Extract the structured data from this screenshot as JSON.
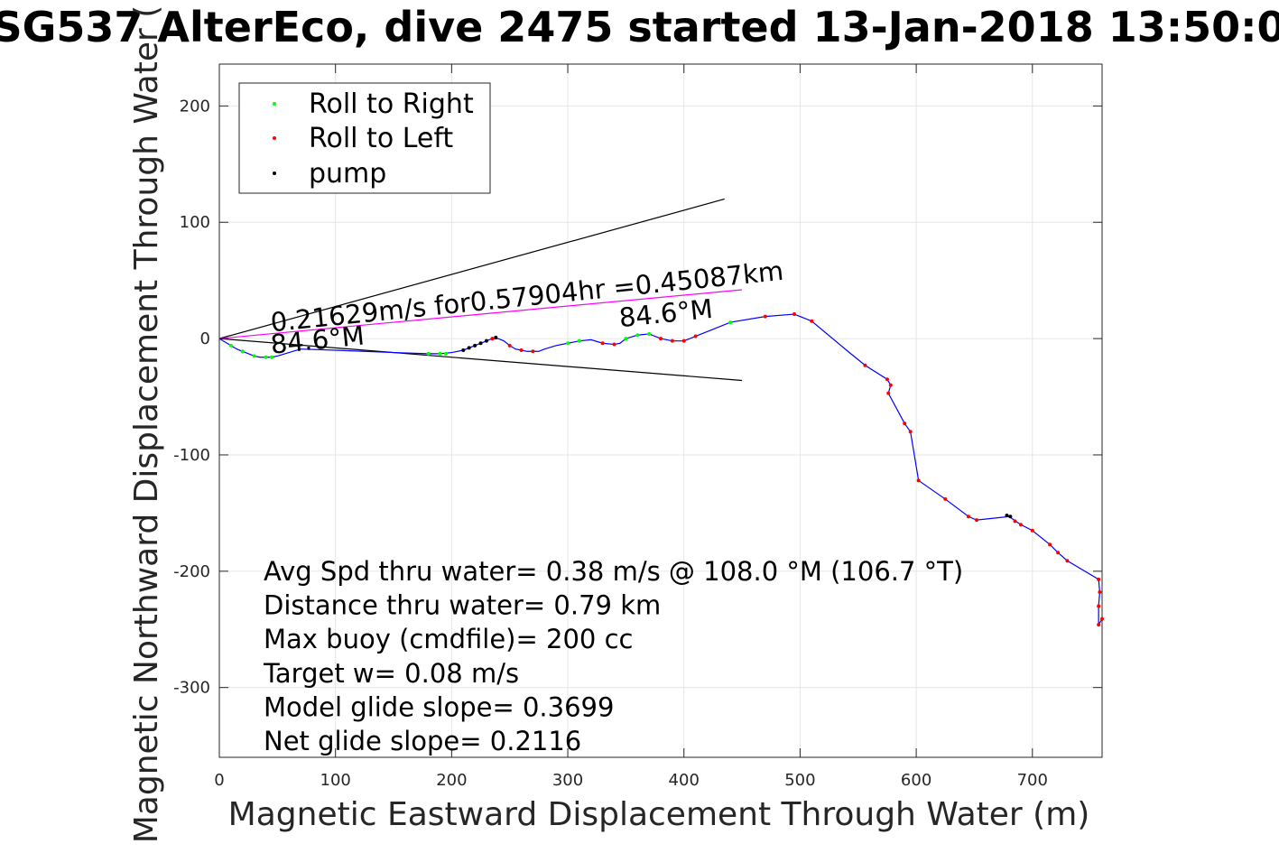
{
  "chart_data": {
    "type": "line",
    "title": "SG537 AlterEco, dive 2475 started 13-Jan-2018 13:50:0",
    "xlabel": "Magnetic Eastward Displacement Through Water (m)",
    "ylabel": "Magnetic Northward Displacement Through Water (",
    "xlim": [
      0,
      760
    ],
    "ylim": [
      -360,
      236
    ],
    "xticks": [
      0,
      100,
      200,
      300,
      400,
      500,
      600,
      700
    ],
    "yticks": [
      -300,
      -200,
      -100,
      0,
      100,
      200
    ],
    "xtick_labels": [
      "0",
      "100",
      "200",
      "300",
      "400",
      "500",
      "600",
      "700"
    ],
    "ytick_labels": [
      "-300",
      "-200",
      "-100",
      "0",
      "100",
      "200"
    ],
    "grid": true,
    "legend_position": "top-left",
    "legend": [
      {
        "label": "Roll to Right",
        "color": "#00ff00"
      },
      {
        "label": "Roll to Left",
        "color": "#ff0000"
      },
      {
        "label": "pump",
        "color": "#000000"
      }
    ],
    "track_color": "#0000ff",
    "track": [
      [
        0,
        0
      ],
      [
        5,
        -3
      ],
      [
        10,
        -6
      ],
      [
        15,
        -9
      ],
      [
        20,
        -11
      ],
      [
        25,
        -13
      ],
      [
        30,
        -15
      ],
      [
        35,
        -16
      ],
      [
        40,
        -16
      ],
      [
        45,
        -16
      ],
      [
        50,
        -15
      ],
      [
        60,
        -12
      ],
      [
        70,
        -9
      ],
      [
        100,
        -10
      ],
      [
        150,
        -12
      ],
      [
        180,
        -13
      ],
      [
        190,
        -13
      ],
      [
        200,
        -12
      ],
      [
        210,
        -10
      ],
      [
        215,
        -8
      ],
      [
        220,
        -6
      ],
      [
        225,
        -4
      ],
      [
        230,
        -2
      ],
      [
        235,
        0
      ],
      [
        240,
        0
      ],
      [
        245,
        -2
      ],
      [
        250,
        -6
      ],
      [
        255,
        -9
      ],
      [
        260,
        -10
      ],
      [
        265,
        -11
      ],
      [
        270,
        -11
      ],
      [
        275,
        -11
      ],
      [
        280,
        -9
      ],
      [
        290,
        -6
      ],
      [
        300,
        -4
      ],
      [
        310,
        -2
      ],
      [
        320,
        -1
      ],
      [
        330,
        -4
      ],
      [
        340,
        -5
      ],
      [
        345,
        -4
      ],
      [
        350,
        0
      ],
      [
        360,
        3
      ],
      [
        370,
        4
      ],
      [
        380,
        0
      ],
      [
        390,
        -2
      ],
      [
        400,
        -2
      ],
      [
        410,
        2
      ],
      [
        440,
        14
      ],
      [
        470,
        19
      ],
      [
        495,
        21
      ],
      [
        510,
        15
      ],
      [
        540,
        -10
      ],
      [
        556,
        -23
      ],
      [
        575,
        -35
      ],
      [
        578,
        -40
      ],
      [
        576,
        -47
      ],
      [
        590,
        -73
      ],
      [
        595,
        -80
      ],
      [
        602,
        -122
      ],
      [
        625,
        -138
      ],
      [
        645,
        -153
      ],
      [
        652,
        -156
      ],
      [
        680,
        -153
      ],
      [
        690,
        -160
      ],
      [
        700,
        -165
      ],
      [
        715,
        -177
      ],
      [
        722,
        -184
      ],
      [
        730,
        -191
      ],
      [
        757,
        -207
      ],
      [
        758,
        -218
      ],
      [
        757,
        -230
      ],
      [
        757,
        -246
      ],
      [
        760,
        -241
      ]
    ],
    "roll_right": [
      [
        10,
        -6
      ],
      [
        20,
        -11
      ],
      [
        30,
        -15
      ],
      [
        40,
        -16
      ],
      [
        45,
        -16
      ],
      [
        180,
        -13
      ],
      [
        190,
        -13
      ],
      [
        195,
        -13
      ],
      [
        300,
        -4
      ],
      [
        310,
        -2
      ],
      [
        350,
        0
      ],
      [
        360,
        3
      ],
      [
        370,
        4
      ],
      [
        440,
        14
      ]
    ],
    "roll_left": [
      [
        235,
        0
      ],
      [
        250,
        -6
      ],
      [
        260,
        -10
      ],
      [
        270,
        -11
      ],
      [
        330,
        -4
      ],
      [
        340,
        -5
      ],
      [
        380,
        0
      ],
      [
        390,
        -2
      ],
      [
        400,
        -2
      ],
      [
        410,
        2
      ],
      [
        470,
        19
      ],
      [
        495,
        21
      ],
      [
        510,
        15
      ],
      [
        556,
        -23
      ],
      [
        575,
        -35
      ],
      [
        578,
        -40
      ],
      [
        576,
        -47
      ],
      [
        590,
        -73
      ],
      [
        595,
        -80
      ],
      [
        602,
        -122
      ],
      [
        625,
        -138
      ],
      [
        645,
        -153
      ],
      [
        652,
        -156
      ],
      [
        685,
        -157
      ],
      [
        690,
        -160
      ],
      [
        700,
        -165
      ],
      [
        715,
        -177
      ],
      [
        722,
        -184
      ],
      [
        730,
        -191
      ],
      [
        757,
        -207
      ],
      [
        758,
        -218
      ],
      [
        757,
        -230
      ],
      [
        757,
        -246
      ],
      [
        760,
        -241
      ]
    ],
    "pump": [
      [
        210,
        -10
      ],
      [
        215,
        -8
      ],
      [
        220,
        -6
      ],
      [
        225,
        -4
      ],
      [
        230,
        -2
      ],
      [
        238,
        1
      ],
      [
        678,
        -152
      ],
      [
        681,
        -153
      ]
    ],
    "bearing_lines": [
      {
        "from": [
          0,
          0
        ],
        "to": [
          435,
          120
        ],
        "color": "#000000"
      },
      {
        "from": [
          0,
          0
        ],
        "to": [
          450,
          -36
        ],
        "color": "#000000"
      },
      {
        "from": [
          0,
          0
        ],
        "to": [
          450,
          42
        ],
        "color": "#ff00ff"
      }
    ],
    "annotations": [
      {
        "text": "0.21629m/s for0.57904hr =0.45087km",
        "x": 45,
        "y": 6,
        "angle_deg": -5.8
      },
      {
        "text": "84.6°M",
        "x": 345,
        "y": 10,
        "angle_deg": -5.8
      },
      {
        "text": "84.6°M",
        "x": 45,
        "y": -13,
        "angle_deg": -5.8
      }
    ],
    "stats": [
      "Avg Spd thru water=  0.38 m/s @ 108.0 °M (106.7 °T)",
      "Distance thru water=  0.79 km",
      "Max buoy (cmdfile)= 200 cc",
      "Target w= 0.08 m/s",
      "Model glide slope= 0.3699",
      "Net glide slope= 0.2116"
    ]
  }
}
